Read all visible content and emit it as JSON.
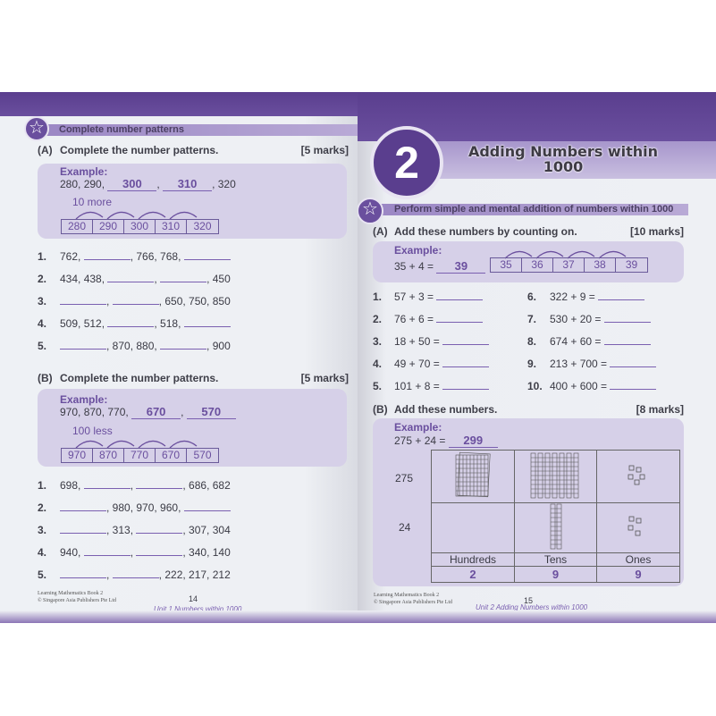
{
  "left_page": {
    "section_title": "Complete number patterns",
    "part_a": {
      "label": "(A)",
      "instruction": "Complete the number patterns.",
      "marks": "[5 marks]",
      "example": {
        "heading": "Example:",
        "prefix": "280, 290,",
        "answers": [
          "300",
          "310"
        ],
        "suffix": ", 320",
        "hint": "10 more",
        "cells": [
          "280",
          "290",
          "300",
          "310",
          "320"
        ]
      },
      "items": [
        {
          "n": "1.",
          "parts": [
            "762, ",
            "",
            ", 766, 768, ",
            ""
          ]
        },
        {
          "n": "2.",
          "parts": [
            "434, 438, ",
            "",
            ", ",
            "",
            ", 450"
          ]
        },
        {
          "n": "3.",
          "parts": [
            "",
            ", ",
            "",
            ", 650, 750, 850"
          ]
        },
        {
          "n": "4.",
          "parts": [
            "509, 512, ",
            "",
            ", 518, ",
            ""
          ]
        },
        {
          "n": "5.",
          "parts": [
            "",
            ", 870, 880, ",
            "",
            ", 900"
          ]
        }
      ]
    },
    "part_b": {
      "label": "(B)",
      "instruction": "Complete the number patterns.",
      "marks": "[5 marks]",
      "example": {
        "heading": "Example:",
        "prefix": "970, 870, 770,",
        "answers": [
          "670",
          "570"
        ],
        "suffix": "",
        "hint": "100 less",
        "cells": [
          "970",
          "870",
          "770",
          "670",
          "570"
        ]
      },
      "items": [
        {
          "n": "1.",
          "parts": [
            "698, ",
            "",
            ", ",
            "",
            ", 686, 682"
          ]
        },
        {
          "n": "2.",
          "parts": [
            "",
            ", 980, 970, 960, ",
            ""
          ]
        },
        {
          "n": "3.",
          "parts": [
            "",
            ", 313, ",
            "",
            ", 307, 304"
          ]
        },
        {
          "n": "4.",
          "parts": [
            "940, ",
            "",
            ", ",
            "",
            ", 340, 140"
          ]
        },
        {
          "n": "5.",
          "parts": [
            "",
            ", ",
            "",
            ", 222, 217, 212"
          ]
        }
      ]
    },
    "footer": {
      "book": "Learning Mathematics Book 2",
      "publisher": "© Singapore Asia Publishers Pte Ltd",
      "page": "14",
      "unit": "Unit 1  Numbers within 1000"
    }
  },
  "right_page": {
    "chapter_number": "2",
    "chapter_title_line1": "Adding Numbers within",
    "chapter_title_line2": "1000",
    "section_title": "Perform simple and mental addition of numbers within 1000",
    "part_a": {
      "label": "(A)",
      "instruction": "Add these numbers by counting on.",
      "marks": "[10 marks]",
      "example": {
        "heading": "Example:",
        "equation": "35 + 4 =",
        "answer": "39",
        "cells": [
          "35",
          "36",
          "37",
          "38",
          "39"
        ]
      },
      "items": [
        {
          "n": "1.",
          "parts": [
            "57 + 3 = ",
            ""
          ]
        },
        {
          "n": "2.",
          "parts": [
            "76 + 6 = ",
            ""
          ]
        },
        {
          "n": "3.",
          "parts": [
            "18 + 50 = ",
            ""
          ]
        },
        {
          "n": "4.",
          "parts": [
            "49 + 70 = ",
            ""
          ]
        },
        {
          "n": "5.",
          "parts": [
            "101 + 8 = ",
            ""
          ]
        },
        {
          "n": "6.",
          "parts": [
            "322 + 9 = ",
            ""
          ]
        },
        {
          "n": "7.",
          "parts": [
            "530 + 20 = ",
            ""
          ]
        },
        {
          "n": "8.",
          "parts": [
            "674 + 60 = ",
            ""
          ]
        },
        {
          "n": "9.",
          "parts": [
            "213 + 700 = ",
            ""
          ]
        },
        {
          "n": "10.",
          "parts": [
            "400 + 600 = ",
            ""
          ]
        }
      ]
    },
    "part_b": {
      "label": "(B)",
      "instruction": "Add these numbers.",
      "marks": "[8 marks]",
      "example": {
        "heading": "Example:",
        "equation": "275 + 24 =",
        "answer": "299",
        "rows": [
          "275",
          "24"
        ],
        "columns": [
          "Hundreds",
          "Tens",
          "Ones"
        ],
        "totals": [
          "2",
          "9",
          "9"
        ]
      }
    },
    "footer": {
      "book": "Learning Mathematics Book 2",
      "publisher": "© Singapore Asia Publishers Pte Ltd",
      "page": "15",
      "unit": "Unit 2  Adding Numbers within 1000"
    }
  },
  "colors": {
    "accent": "#6a4f9e",
    "band": "#5a3e8e",
    "example_box": "#d6d0e8",
    "page": "#eef0f4"
  }
}
